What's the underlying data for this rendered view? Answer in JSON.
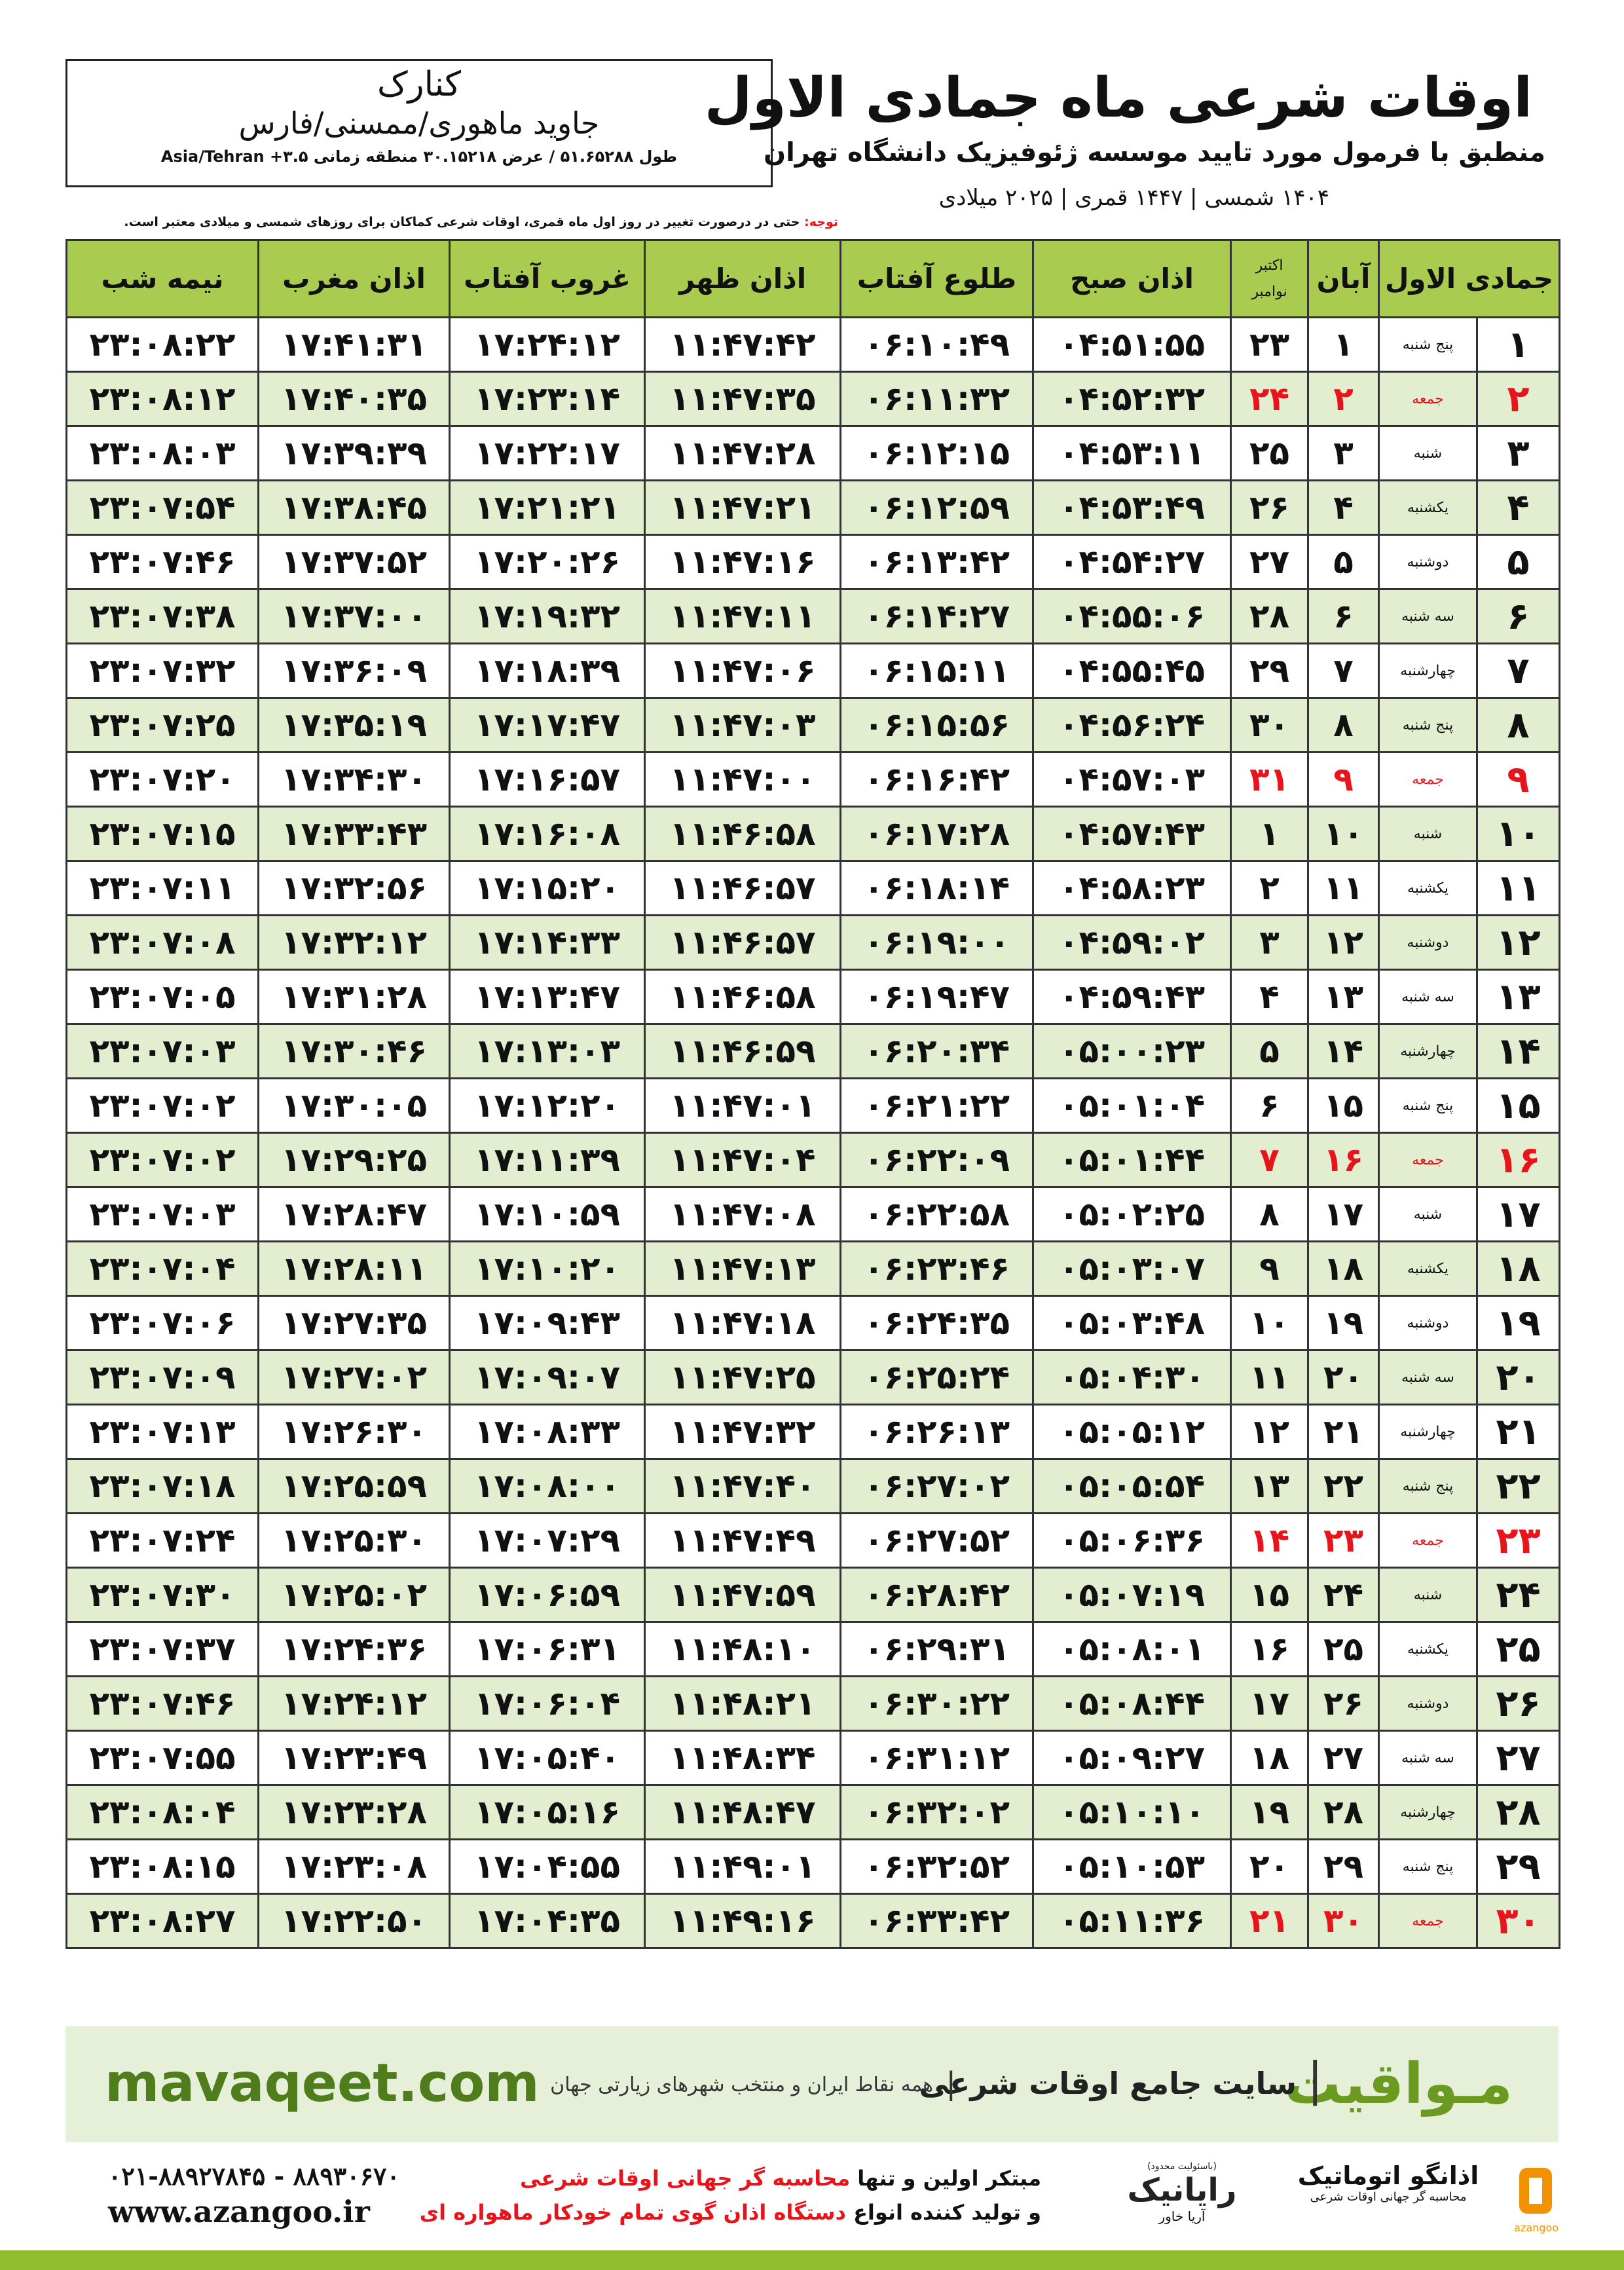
{
  "header": {
    "title": "اوقات شرعی ماه جمادی الاول",
    "subtitle": "منطبق با فرمول مورد تایید موسسه ژئوفیزیک دانشگاه تهران",
    "dateline": "۱۴۰۴ شمسی | ۱۴۴۷ قمری | ۲۰۲۵ میلادی",
    "city": "کنارک",
    "region": "جاوید ماهوری/ممسنی/فارس",
    "coords": "طول ۵۱.۶۵۲۸۸ / عرض ۳۰.۱۵۲۱۸ منطقه زمانی ۳.۵+ Asia/Tehran",
    "note_label": "توجه:",
    "note": "حتی در درصورت تغییر در روز اول ماه قمری، اوقات شرعی کماکان برای روزهای شمسی و میلادی معتبر است."
  },
  "table": {
    "headers": [
      "جمادی الاول",
      "آبان",
      [
        "اکتبر",
        "نوامبر"
      ],
      "اذان صبح",
      "طلوع آفتاب",
      "اذان ظهر",
      "غروب آفتاب",
      "اذان مغرب",
      "نیمه شب"
    ],
    "rows": [
      {
        "cells": [
          "۱",
          "پنج شنبه",
          "۱",
          "۲۳",
          "۰۴:۵۱:۵۵",
          "۰۶:۱۰:۴۹",
          "۱۱:۴۷:۴۲",
          "۱۷:۲۴:۱۲",
          "۱۷:۴۱:۳۱",
          "۲۳:۰۸:۲۲"
        ],
        "holiday": false
      },
      {
        "cells": [
          "۲",
          "جمعه",
          "۲",
          "۲۴",
          "۰۴:۵۲:۳۲",
          "۰۶:۱۱:۳۲",
          "۱۱:۴۷:۳۵",
          "۱۷:۲۳:۱۴",
          "۱۷:۴۰:۳۵",
          "۲۳:۰۸:۱۲"
        ],
        "holiday": true
      },
      {
        "cells": [
          "۳",
          "شنبه",
          "۳",
          "۲۵",
          "۰۴:۵۳:۱۱",
          "۰۶:۱۲:۱۵",
          "۱۱:۴۷:۲۸",
          "۱۷:۲۲:۱۷",
          "۱۷:۳۹:۳۹",
          "۲۳:۰۸:۰۳"
        ],
        "holiday": false
      },
      {
        "cells": [
          "۴",
          "یکشنبه",
          "۴",
          "۲۶",
          "۰۴:۵۳:۴۹",
          "۰۶:۱۲:۵۹",
          "۱۱:۴۷:۲۱",
          "۱۷:۲۱:۲۱",
          "۱۷:۳۸:۴۵",
          "۲۳:۰۷:۵۴"
        ],
        "holiday": false
      },
      {
        "cells": [
          "۵",
          "دوشنبه",
          "۵",
          "۲۷",
          "۰۴:۵۴:۲۷",
          "۰۶:۱۳:۴۲",
          "۱۱:۴۷:۱۶",
          "۱۷:۲۰:۲۶",
          "۱۷:۳۷:۵۲",
          "۲۳:۰۷:۴۶"
        ],
        "holiday": false
      },
      {
        "cells": [
          "۶",
          "سه شنبه",
          "۶",
          "۲۸",
          "۰۴:۵۵:۰۶",
          "۰۶:۱۴:۲۷",
          "۱۱:۴۷:۱۱",
          "۱۷:۱۹:۳۲",
          "۱۷:۳۷:۰۰",
          "۲۳:۰۷:۳۸"
        ],
        "holiday": false
      },
      {
        "cells": [
          "۷",
          "چهارشنبه",
          "۷",
          "۲۹",
          "۰۴:۵۵:۴۵",
          "۰۶:۱۵:۱۱",
          "۱۱:۴۷:۰۶",
          "۱۷:۱۸:۳۹",
          "۱۷:۳۶:۰۹",
          "۲۳:۰۷:۳۲"
        ],
        "holiday": false
      },
      {
        "cells": [
          "۸",
          "پنج شنبه",
          "۸",
          "۳۰",
          "۰۴:۵۶:۲۴",
          "۰۶:۱۵:۵۶",
          "۱۱:۴۷:۰۳",
          "۱۷:۱۷:۴۷",
          "۱۷:۳۵:۱۹",
          "۲۳:۰۷:۲۵"
        ],
        "holiday": false
      },
      {
        "cells": [
          "۹",
          "جمعه",
          "۹",
          "۳۱",
          "۰۴:۵۷:۰۳",
          "۰۶:۱۶:۴۲",
          "۱۱:۴۷:۰۰",
          "۱۷:۱۶:۵۷",
          "۱۷:۳۴:۳۰",
          "۲۳:۰۷:۲۰"
        ],
        "holiday": true
      },
      {
        "cells": [
          "۱۰",
          "شنبه",
          "۱۰",
          "۱",
          "۰۴:۵۷:۴۳",
          "۰۶:۱۷:۲۸",
          "۱۱:۴۶:۵۸",
          "۱۷:۱۶:۰۸",
          "۱۷:۳۳:۴۳",
          "۲۳:۰۷:۱۵"
        ],
        "holiday": false
      },
      {
        "cells": [
          "۱۱",
          "یکشنبه",
          "۱۱",
          "۲",
          "۰۴:۵۸:۲۳",
          "۰۶:۱۸:۱۴",
          "۱۱:۴۶:۵۷",
          "۱۷:۱۵:۲۰",
          "۱۷:۳۲:۵۶",
          "۲۳:۰۷:۱۱"
        ],
        "holiday": false
      },
      {
        "cells": [
          "۱۲",
          "دوشنبه",
          "۱۲",
          "۳",
          "۰۴:۵۹:۰۲",
          "۰۶:۱۹:۰۰",
          "۱۱:۴۶:۵۷",
          "۱۷:۱۴:۳۳",
          "۱۷:۳۲:۱۲",
          "۲۳:۰۷:۰۸"
        ],
        "holiday": false
      },
      {
        "cells": [
          "۱۳",
          "سه شنبه",
          "۱۳",
          "۴",
          "۰۴:۵۹:۴۳",
          "۰۶:۱۹:۴۷",
          "۱۱:۴۶:۵۸",
          "۱۷:۱۳:۴۷",
          "۱۷:۳۱:۲۸",
          "۲۳:۰۷:۰۵"
        ],
        "holiday": false
      },
      {
        "cells": [
          "۱۴",
          "چهارشنبه",
          "۱۴",
          "۵",
          "۰۵:۰۰:۲۳",
          "۰۶:۲۰:۳۴",
          "۱۱:۴۶:۵۹",
          "۱۷:۱۳:۰۳",
          "۱۷:۳۰:۴۶",
          "۲۳:۰۷:۰۳"
        ],
        "holiday": false
      },
      {
        "cells": [
          "۱۵",
          "پنج شنبه",
          "۱۵",
          "۶",
          "۰۵:۰۱:۰۴",
          "۰۶:۲۱:۲۲",
          "۱۱:۴۷:۰۱",
          "۱۷:۱۲:۲۰",
          "۱۷:۳۰:۰۵",
          "۲۳:۰۷:۰۲"
        ],
        "holiday": false
      },
      {
        "cells": [
          "۱۶",
          "جمعه",
          "۱۶",
          "۷",
          "۰۵:۰۱:۴۴",
          "۰۶:۲۲:۰۹",
          "۱۱:۴۷:۰۴",
          "۱۷:۱۱:۳۹",
          "۱۷:۲۹:۲۵",
          "۲۳:۰۷:۰۲"
        ],
        "holiday": true
      },
      {
        "cells": [
          "۱۷",
          "شنبه",
          "۱۷",
          "۸",
          "۰۵:۰۲:۲۵",
          "۰۶:۲۲:۵۸",
          "۱۱:۴۷:۰۸",
          "۱۷:۱۰:۵۹",
          "۱۷:۲۸:۴۷",
          "۲۳:۰۷:۰۳"
        ],
        "holiday": false
      },
      {
        "cells": [
          "۱۸",
          "یکشنبه",
          "۱۸",
          "۹",
          "۰۵:۰۳:۰۷",
          "۰۶:۲۳:۴۶",
          "۱۱:۴۷:۱۳",
          "۱۷:۱۰:۲۰",
          "۱۷:۲۸:۱۱",
          "۲۳:۰۷:۰۴"
        ],
        "holiday": false
      },
      {
        "cells": [
          "۱۹",
          "دوشنبه",
          "۱۹",
          "۱۰",
          "۰۵:۰۳:۴۸",
          "۰۶:۲۴:۳۵",
          "۱۱:۴۷:۱۸",
          "۱۷:۰۹:۴۳",
          "۱۷:۲۷:۳۵",
          "۲۳:۰۷:۰۶"
        ],
        "holiday": false
      },
      {
        "cells": [
          "۲۰",
          "سه شنبه",
          "۲۰",
          "۱۱",
          "۰۵:۰۴:۳۰",
          "۰۶:۲۵:۲۴",
          "۱۱:۴۷:۲۵",
          "۱۷:۰۹:۰۷",
          "۱۷:۲۷:۰۲",
          "۲۳:۰۷:۰۹"
        ],
        "holiday": false
      },
      {
        "cells": [
          "۲۱",
          "چهارشنبه",
          "۲۱",
          "۱۲",
          "۰۵:۰۵:۱۲",
          "۰۶:۲۶:۱۳",
          "۱۱:۴۷:۳۲",
          "۱۷:۰۸:۳۳",
          "۱۷:۲۶:۳۰",
          "۲۳:۰۷:۱۳"
        ],
        "holiday": false
      },
      {
        "cells": [
          "۲۲",
          "پنج شنبه",
          "۲۲",
          "۱۳",
          "۰۵:۰۵:۵۴",
          "۰۶:۲۷:۰۲",
          "۱۱:۴۷:۴۰",
          "۱۷:۰۸:۰۰",
          "۱۷:۲۵:۵۹",
          "۲۳:۰۷:۱۸"
        ],
        "holiday": false
      },
      {
        "cells": [
          "۲۳",
          "جمعه",
          "۲۳",
          "۱۴",
          "۰۵:۰۶:۳۶",
          "۰۶:۲۷:۵۲",
          "۱۱:۴۷:۴۹",
          "۱۷:۰۷:۲۹",
          "۱۷:۲۵:۳۰",
          "۲۳:۰۷:۲۴"
        ],
        "holiday": true
      },
      {
        "cells": [
          "۲۴",
          "شنبه",
          "۲۴",
          "۱۵",
          "۰۵:۰۷:۱۹",
          "۰۶:۲۸:۴۲",
          "۱۱:۴۷:۵۹",
          "۱۷:۰۶:۵۹",
          "۱۷:۲۵:۰۲",
          "۲۳:۰۷:۳۰"
        ],
        "holiday": false
      },
      {
        "cells": [
          "۲۵",
          "یکشنبه",
          "۲۵",
          "۱۶",
          "۰۵:۰۸:۰۱",
          "۰۶:۲۹:۳۱",
          "۱۱:۴۸:۱۰",
          "۱۷:۰۶:۳۱",
          "۱۷:۲۴:۳۶",
          "۲۳:۰۷:۳۷"
        ],
        "holiday": false
      },
      {
        "cells": [
          "۲۶",
          "دوشنبه",
          "۲۶",
          "۱۷",
          "۰۵:۰۸:۴۴",
          "۰۶:۳۰:۲۲",
          "۱۱:۴۸:۲۱",
          "۱۷:۰۶:۰۴",
          "۱۷:۲۴:۱۲",
          "۲۳:۰۷:۴۶"
        ],
        "holiday": false
      },
      {
        "cells": [
          "۲۷",
          "سه شنبه",
          "۲۷",
          "۱۸",
          "۰۵:۰۹:۲۷",
          "۰۶:۳۱:۱۲",
          "۱۱:۴۸:۳۴",
          "۱۷:۰۵:۴۰",
          "۱۷:۲۳:۴۹",
          "۲۳:۰۷:۵۵"
        ],
        "holiday": false
      },
      {
        "cells": [
          "۲۸",
          "چهارشنبه",
          "۲۸",
          "۱۹",
          "۰۵:۱۰:۱۰",
          "۰۶:۳۲:۰۲",
          "۱۱:۴۸:۴۷",
          "۱۷:۰۵:۱۶",
          "۱۷:۲۳:۲۸",
          "۲۳:۰۸:۰۴"
        ],
        "holiday": false
      },
      {
        "cells": [
          "۲۹",
          "پنج شنبه",
          "۲۹",
          "۲۰",
          "۰۵:۱۰:۵۳",
          "۰۶:۳۲:۵۲",
          "۱۱:۴۹:۰۱",
          "۱۷:۰۴:۵۵",
          "۱۷:۲۳:۰۸",
          "۲۳:۰۸:۱۵"
        ],
        "holiday": false
      },
      {
        "cells": [
          "۳۰",
          "جمعه",
          "۳۰",
          "۲۱",
          "۰۵:۱۱:۳۶",
          "۰۶:۳۳:۴۲",
          "۱۱:۴۹:۱۶",
          "۱۷:۰۴:۳۵",
          "۱۷:۲۲:۵۰",
          "۲۳:۰۸:۲۷"
        ],
        "holiday": true
      }
    ]
  },
  "banner": {
    "brand": "مـواقیت",
    "site": "سایت جامع اوقات شرعی",
    "scope": "همه نقاط ایران و منتخب شهرهای زیارتی جهان",
    "url": "mavaqeet.com"
  },
  "footer": {
    "phone": "۰۲۱-۸۸۹۲۷۸۴۵ - ۸۸۹۳۰۶۷۰",
    "web": "www.azangoo.ir",
    "line1a": "مبتکر اولین و تنها",
    "line1b": "محاسبه گر جهانی اوقات شرعی",
    "line2a": "و تولید کننده انواع",
    "line2b": "دستگاه اذان گوی تمام خودکار ماهواره ای",
    "logo1_note": "(باسئولیت محدود)",
    "logo1_name": "رایانیک",
    "logo1_sub": "آریا خاور",
    "logo2_name": "اذانگو اتوماتیک",
    "logo2_sub": "محاسبه گر جهانی اوقات شرعی",
    "logo2_latin": "azangoo"
  }
}
